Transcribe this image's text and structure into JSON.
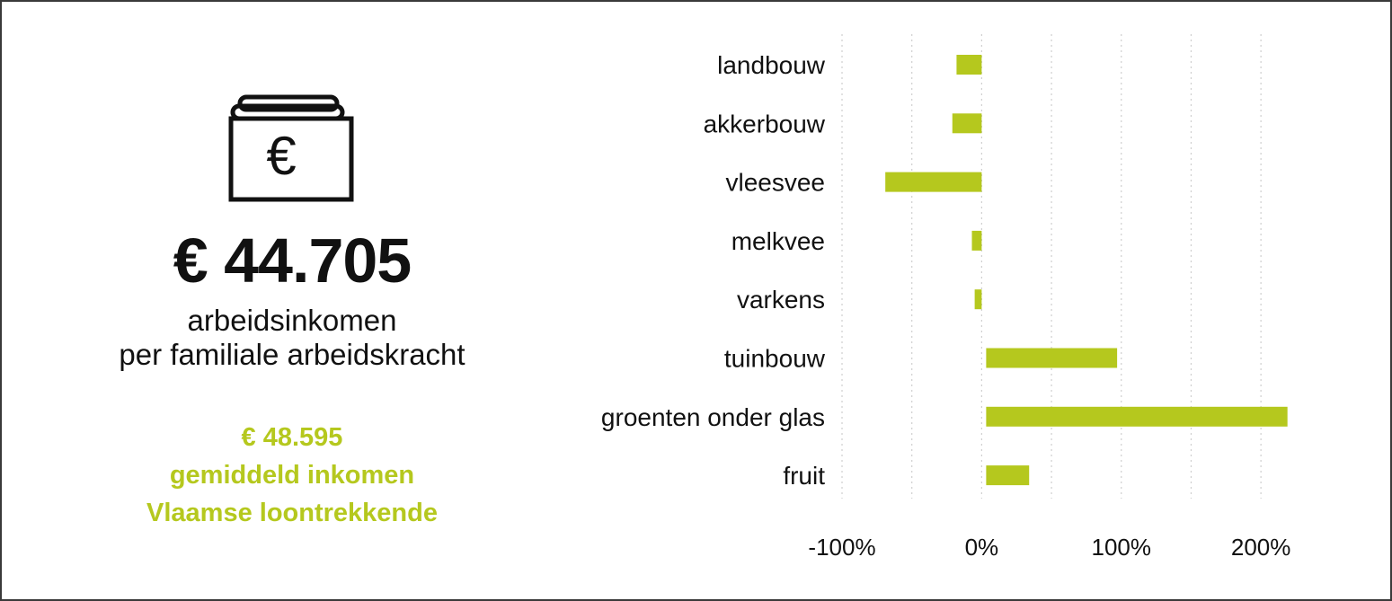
{
  "colors": {
    "accent": "#b5c81e",
    "text": "#111111",
    "grid": "#cfcfcf",
    "frame": "#3a3a3a"
  },
  "left": {
    "icon": "wallet-euro-icon",
    "icon_symbol": "€",
    "amount": "€ 44.705",
    "subtitle_lines": [
      "arbeidsinkomen",
      "per familiale arbeidskracht"
    ],
    "compare_lines": [
      "€ 48.595",
      "gemiddeld inkomen",
      "Vlaamse loontrekkende"
    ]
  },
  "chart_data": {
    "type": "bar",
    "orientation": "horizontal",
    "categories": [
      "landbouw",
      "akkerbouw",
      "vleesvee",
      "melkvee",
      "varkens",
      "tuinbouw",
      "groenten onder glas",
      "fruit"
    ],
    "values": [
      -18,
      -21,
      -69,
      -7,
      -5,
      97,
      219,
      34
    ],
    "xlim": [
      -100,
      225
    ],
    "xticks": [
      -100,
      0,
      100,
      200
    ],
    "xtick_labels": [
      "-100%",
      "0%",
      "100%",
      "200%"
    ],
    "grid": "vertical-dotted",
    "legend": "none",
    "title": "",
    "xlabel": "",
    "ylabel": ""
  }
}
